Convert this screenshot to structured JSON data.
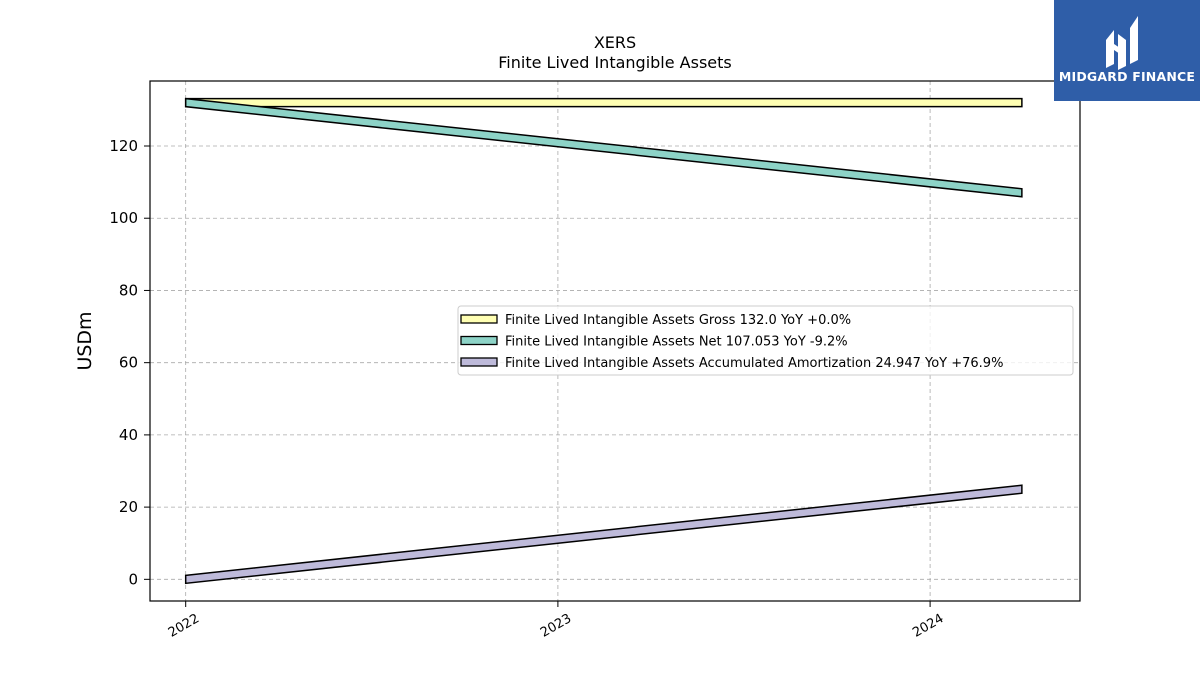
{
  "brand": {
    "name": "MIDGARD FINANCE",
    "background": "#2f5ea8"
  },
  "chart_data": {
    "type": "line",
    "title": "XERS",
    "subtitle": "Finite Lived Intangible Assets",
    "xlabel": "",
    "ylabel": "USDm",
    "x_ticks": [
      "2022",
      "2023",
      "2024"
    ],
    "y_ticks": [
      0,
      20,
      40,
      60,
      80,
      100,
      120
    ],
    "xlim": [
      "2021-11-27",
      "2024-05-27"
    ],
    "ylim": [
      -6,
      138
    ],
    "grid": true,
    "legend_position": "center-right",
    "x": [
      "2022-01-01",
      "2024-03-31"
    ],
    "series": [
      {
        "name": "Finite Lived Intangible Assets Gross  132.0 YoY +0.0%",
        "values": [
          132.0,
          132.0
        ],
        "color": "#ffffb3"
      },
      {
        "name": "Finite Lived Intangible Assets Net  107.053 YoY -9.2%",
        "values": [
          132.0,
          107.053
        ],
        "color": "#8dd3c7"
      },
      {
        "name": "Finite Lived Intangible Assets Accumulated Amortization  24.947 YoY +76.9%",
        "values": [
          0.0,
          24.947
        ],
        "color": "#bebada"
      }
    ]
  }
}
